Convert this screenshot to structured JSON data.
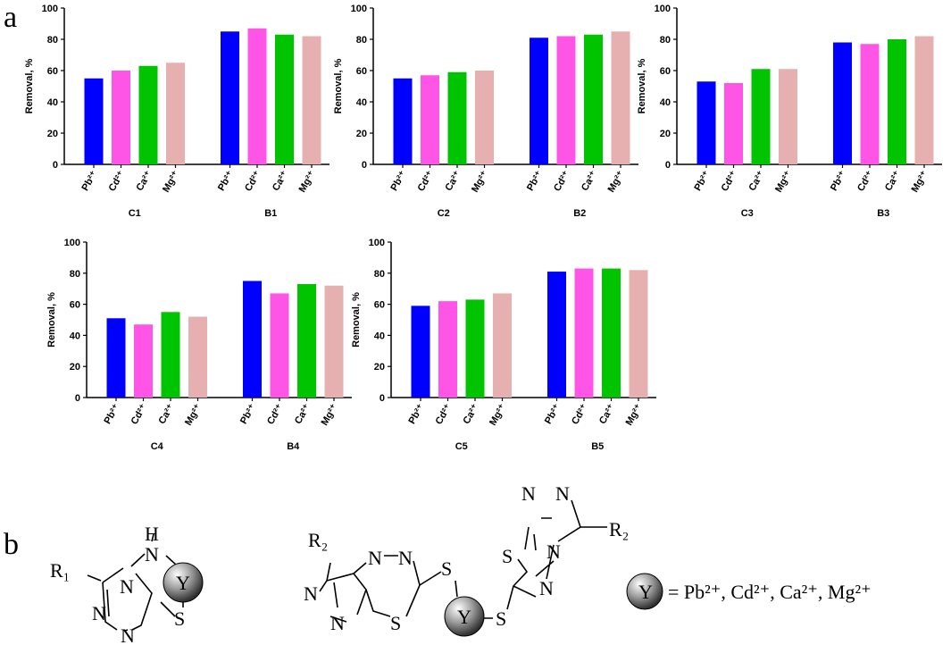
{
  "panel_labels": [
    "a",
    "b"
  ],
  "chart_data": [
    {
      "type": "bar",
      "ylabel": "Removal, %",
      "categories": [
        "Pb²⁺",
        "Cd²⁺",
        "Ca²⁺",
        "Mg²⁺"
      ],
      "colors": [
        "#0000ff",
        "#ff55e6",
        "#00c400",
        "#e6b0b0"
      ],
      "ylim": [
        0,
        100
      ],
      "yticks": [
        0,
        20,
        40,
        60,
        80,
        100
      ],
      "groups": [
        {
          "name": "C1",
          "values": [
            55,
            60,
            63,
            65
          ]
        },
        {
          "name": "B1",
          "values": [
            85,
            87,
            83,
            82
          ]
        }
      ]
    },
    {
      "type": "bar",
      "ylabel": "Removal, %",
      "categories": [
        "Pb²⁺",
        "Cd²⁺",
        "Ca²⁺",
        "Mg²⁺"
      ],
      "colors": [
        "#0000ff",
        "#ff55e6",
        "#00c400",
        "#e6b0b0"
      ],
      "ylim": [
        0,
        100
      ],
      "yticks": [
        0,
        20,
        40,
        60,
        80,
        100
      ],
      "groups": [
        {
          "name": "C2",
          "values": [
            55,
            57,
            59,
            60
          ]
        },
        {
          "name": "B2",
          "values": [
            81,
            82,
            83,
            85
          ]
        }
      ]
    },
    {
      "type": "bar",
      "ylabel": "Removal, %",
      "categories": [
        "Pb²⁺",
        "Cd²⁺",
        "Ca²⁺",
        "Mg²⁺"
      ],
      "colors": [
        "#0000ff",
        "#ff55e6",
        "#00c400",
        "#e6b0b0"
      ],
      "ylim": [
        0,
        100
      ],
      "yticks": [
        0,
        20,
        40,
        60,
        80,
        100
      ],
      "groups": [
        {
          "name": "C3",
          "values": [
            53,
            52,
            61,
            61
          ]
        },
        {
          "name": "B3",
          "values": [
            78,
            77,
            80,
            82
          ]
        }
      ]
    },
    {
      "type": "bar",
      "ylabel": "Removal, %",
      "categories": [
        "Pb²⁺",
        "Cd²⁺",
        "Ca²⁺",
        "Mg²⁺"
      ],
      "colors": [
        "#0000ff",
        "#ff55e6",
        "#00c400",
        "#e6b0b0"
      ],
      "ylim": [
        0,
        100
      ],
      "yticks": [
        0,
        20,
        40,
        60,
        80,
        100
      ],
      "groups": [
        {
          "name": "C4",
          "values": [
            51,
            47,
            55,
            52
          ]
        },
        {
          "name": "B4",
          "values": [
            75,
            67,
            73,
            72
          ]
        }
      ]
    },
    {
      "type": "bar",
      "ylabel": "Removal, %",
      "categories": [
        "Pb²⁺",
        "Cd²⁺",
        "Ca²⁺",
        "Mg²⁺"
      ],
      "colors": [
        "#0000ff",
        "#ff55e6",
        "#00c400",
        "#e6b0b0"
      ],
      "ylim": [
        0,
        100
      ],
      "yticks": [
        0,
        20,
        40,
        60,
        80,
        100
      ],
      "groups": [
        {
          "name": "C5",
          "values": [
            59,
            62,
            63,
            67
          ]
        },
        {
          "name": "B5",
          "values": [
            81,
            83,
            83,
            82
          ]
        }
      ]
    }
  ],
  "structures": {
    "left": [
      "R₁",
      "N",
      "H",
      "N",
      "Y",
      "S",
      "N",
      "N"
    ],
    "middle": [
      "R₂",
      "N",
      "N",
      "N",
      "N",
      "S",
      "S",
      "Y",
      "S",
      "S",
      "N",
      "N",
      "N",
      "R₂",
      "N"
    ],
    "legend_symbol": "Y",
    "legend_text": "= Pb²⁺, Cd²⁺, Ca²⁺, Mg²⁺"
  }
}
